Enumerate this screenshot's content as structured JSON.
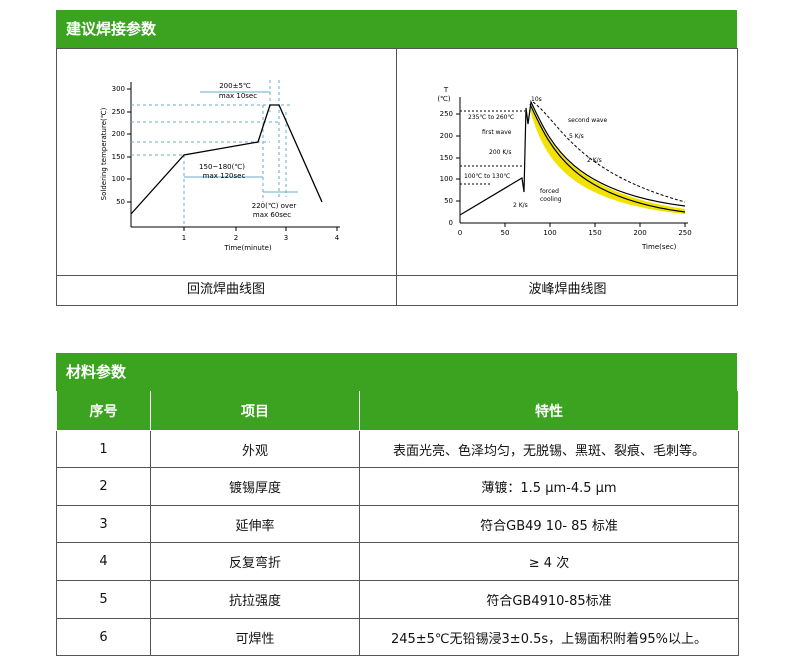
{
  "section1": {
    "title": "建议焊接参数",
    "left_caption": "回流焊曲线图",
    "right_caption": "波峰焊曲线图"
  },
  "reflow": {
    "ylabel": "Soldering temperature(℃)",
    "xlabel": "Time(minute)",
    "yticks": [
      "300",
      "250",
      "200",
      "150",
      "100",
      "50"
    ],
    "xticks": [
      "1",
      "2",
      "3",
      "4"
    ],
    "ann_peak_1": "200±5℃",
    "ann_peak_2": "max 10sec",
    "ann_pre_1": "150~180(℃)",
    "ann_pre_2": "max 120sec",
    "ann_over_1": "220(℃) over",
    "ann_over_2": "max 60sec"
  },
  "wave": {
    "yunit_1": "T",
    "yunit_2": "(℃)",
    "xlabel": "Time(sec)",
    "yticks": [
      "250",
      "200",
      "150",
      "100",
      "50",
      "0"
    ],
    "xticks": [
      "0",
      "50",
      "100",
      "150",
      "200",
      "250"
    ],
    "ann_10s": "10s",
    "ann_range": "235℃ to 260℃",
    "ann_second": "second wave",
    "ann_first": "first wave",
    "ann_5ks": "5 K/s",
    "ann_200ks": "200 K/s",
    "ann_2ks_a": "2 K/s",
    "ann_pre": "100℃ to 130℃",
    "ann_forced_1": "forced",
    "ann_forced_2": "cooling",
    "ann_2ks_b": "2 K/s"
  },
  "section2": {
    "title": "材料参数",
    "headers": [
      "序号",
      "项目",
      "特性"
    ],
    "rows": [
      {
        "no": "1",
        "item": "外观",
        "prop": "表面光亮、色泽均匀，无脱锡、黑斑、裂痕、毛刺等。"
      },
      {
        "no": "2",
        "item": "镀锡厚度",
        "prop": "薄镀：1.5 μm-4.5 μm"
      },
      {
        "no": "3",
        "item": "延伸率",
        "prop": "符合GB49 10- 85 标准"
      },
      {
        "no": "4",
        "item": "反复弯折",
        "prop": "≥ 4 次"
      },
      {
        "no": "5",
        "item": "抗拉强度",
        "prop": "符合GB4910-85标准"
      },
      {
        "no": "6",
        "item": "可焊性",
        "prop": "245±5℃无铅锡浸3±0.5s，上锡面积附着95%以上。"
      }
    ]
  },
  "colors": {
    "accent": "#3ba320",
    "solder_band": "#f2e200"
  }
}
